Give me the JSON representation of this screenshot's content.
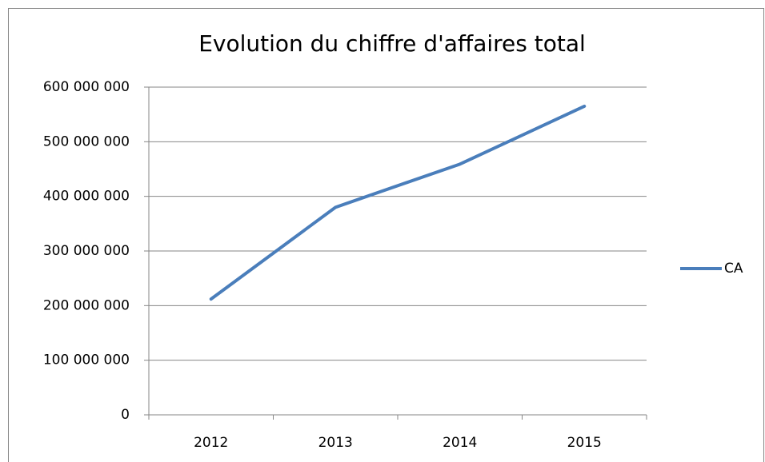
{
  "chart_data": {
    "type": "line",
    "title": "Evolution du chiffre d'affaires total",
    "categories": [
      "2012",
      "2013",
      "2014",
      "2015"
    ],
    "series": [
      {
        "name": "CA",
        "color": "#4a7ebb",
        "values": [
          212000000,
          380000000,
          459000000,
          565000000
        ]
      }
    ],
    "ylim": [
      0,
      600000000
    ],
    "yticks": [
      0,
      {
        "value": 100000000,
        "label": "100 000 000"
      },
      {
        "value": 200000000,
        "label": "200 000 000"
      },
      {
        "value": 300000000,
        "label": "300 000 000"
      },
      {
        "value": 400000000,
        "label": "400 000 000"
      },
      {
        "value": 500000000,
        "label": "500 000 000"
      },
      {
        "value": 600000000,
        "label": "600 000 000"
      }
    ],
    "grid": true,
    "legend": "right"
  }
}
